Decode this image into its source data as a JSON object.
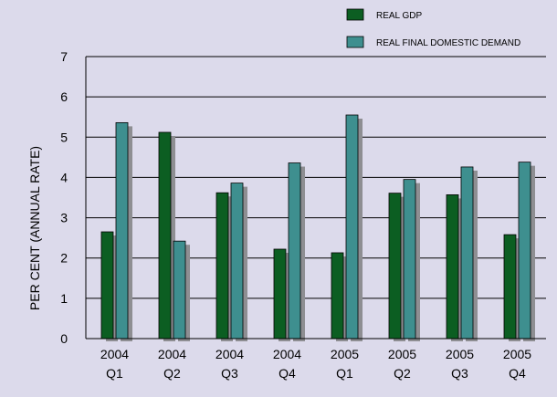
{
  "chart_data": {
    "type": "bar",
    "categories": [
      {
        "year": "2004",
        "quarter": "Q1"
      },
      {
        "year": "2004",
        "quarter": "Q2"
      },
      {
        "year": "2004",
        "quarter": "Q3"
      },
      {
        "year": "2004",
        "quarter": "Q4"
      },
      {
        "year": "2005",
        "quarter": "Q1"
      },
      {
        "year": "2005",
        "quarter": "Q2"
      },
      {
        "year": "2005",
        "quarter": "Q3"
      },
      {
        "year": "2005",
        "quarter": "Q4"
      }
    ],
    "series": [
      {
        "name": "REAL GDP",
        "color": "#0c5e22",
        "values": [
          2.65,
          5.12,
          3.62,
          2.22,
          2.13,
          3.61,
          3.57,
          2.58
        ]
      },
      {
        "name": "REAL FINAL DOMESTIC DEMAND",
        "color": "#3e8f8f",
        "values": [
          5.36,
          2.42,
          3.86,
          4.36,
          5.55,
          3.95,
          4.26,
          4.38
        ]
      }
    ],
    "title": "",
    "xlabel": "",
    "ylabel": "PER CENT (ANNUAL RATE)",
    "ylim": [
      0,
      7
    ],
    "yticks": [
      "0",
      "1",
      "2",
      "3",
      "4",
      "5",
      "6",
      "7"
    ],
    "grid": true,
    "legend_position": "top-right",
    "colors": {
      "plot_background": "#dcdaeb",
      "shadow": "#8e8e92",
      "gridline": "#000000"
    }
  }
}
